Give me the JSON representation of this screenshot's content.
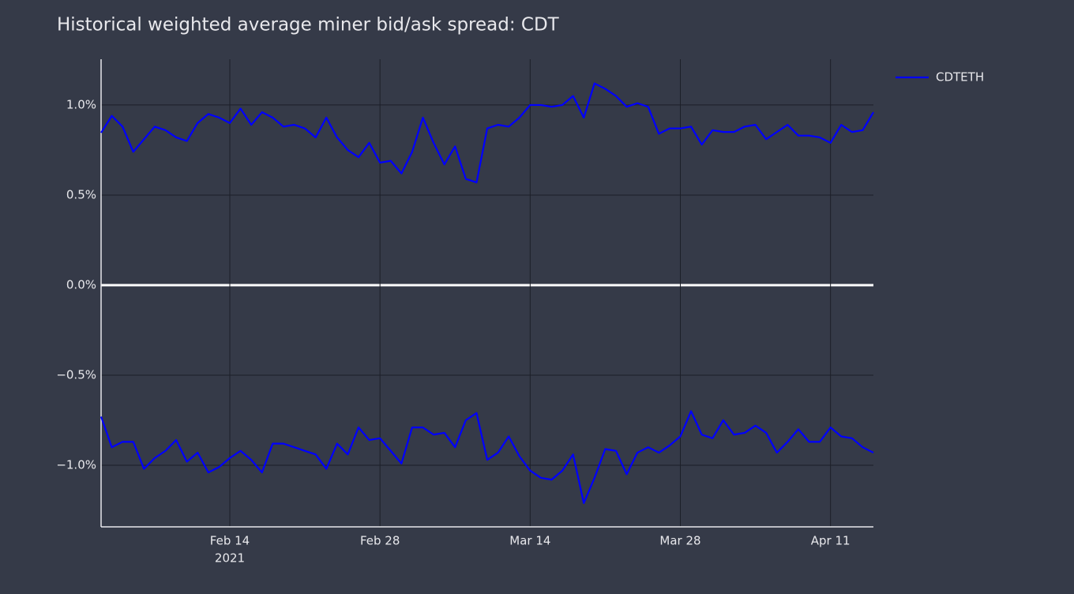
{
  "chart_data": {
    "type": "line",
    "title": "Historical weighted average miner bid/ask spread: CDT",
    "x": [
      "2021-02-02",
      "2021-02-03",
      "2021-02-04",
      "2021-02-05",
      "2021-02-06",
      "2021-02-07",
      "2021-02-08",
      "2021-02-09",
      "2021-02-10",
      "2021-02-11",
      "2021-02-12",
      "2021-02-13",
      "2021-02-14",
      "2021-02-15",
      "2021-02-16",
      "2021-02-17",
      "2021-02-18",
      "2021-02-19",
      "2021-02-20",
      "2021-02-21",
      "2021-02-22",
      "2021-02-23",
      "2021-02-24",
      "2021-02-25",
      "2021-02-26",
      "2021-02-27",
      "2021-02-28",
      "2021-03-01",
      "2021-03-02",
      "2021-03-03",
      "2021-03-04",
      "2021-03-05",
      "2021-03-06",
      "2021-03-07",
      "2021-03-08",
      "2021-03-09",
      "2021-03-10",
      "2021-03-11",
      "2021-03-12",
      "2021-03-13",
      "2021-03-14",
      "2021-03-15",
      "2021-03-16",
      "2021-03-17",
      "2021-03-18",
      "2021-03-19",
      "2021-03-20",
      "2021-03-21",
      "2021-03-22",
      "2021-03-23",
      "2021-03-24",
      "2021-03-25",
      "2021-03-26",
      "2021-03-27",
      "2021-03-28",
      "2021-03-29",
      "2021-03-30",
      "2021-03-31",
      "2021-04-01",
      "2021-04-02",
      "2021-04-03",
      "2021-04-04",
      "2021-04-05",
      "2021-04-06",
      "2021-04-07",
      "2021-04-08",
      "2021-04-09",
      "2021-04-10",
      "2021-04-11",
      "2021-04-12",
      "2021-04-13",
      "2021-04-14",
      "2021-04-15"
    ],
    "series": [
      {
        "name": "CDTETH",
        "color": "#0000ff",
        "values": [
          0.846,
          0.94,
          0.88,
          0.74,
          0.81,
          0.88,
          0.86,
          0.82,
          0.8,
          0.9,
          0.95,
          0.93,
          0.9,
          0.98,
          0.89,
          0.96,
          0.93,
          0.88,
          0.89,
          0.87,
          0.82,
          0.93,
          0.82,
          0.75,
          0.71,
          0.79,
          0.68,
          0.69,
          0.62,
          0.74,
          0.93,
          0.79,
          0.67,
          0.77,
          0.59,
          0.57,
          0.87,
          0.89,
          0.88,
          0.93,
          1.0,
          1.0,
          0.99,
          1.0,
          1.05,
          0.93,
          1.12,
          1.09,
          1.05,
          0.99,
          1.01,
          0.99,
          0.84,
          0.87,
          0.87,
          0.88,
          0.78,
          0.86,
          0.85,
          0.85,
          0.88,
          0.89,
          0.81,
          0.85,
          0.89,
          0.83,
          0.83,
          0.82,
          0.79,
          0.89,
          0.85,
          0.86,
          0.96
        ]
      },
      {
        "color": "#0000ff",
        "values": [
          -0.73,
          -0.9,
          -0.87,
          -0.87,
          -1.02,
          -0.96,
          -0.92,
          -0.86,
          -0.98,
          -0.93,
          -1.04,
          -1.01,
          -0.96,
          -0.92,
          -0.97,
          -1.04,
          -0.88,
          -0.88,
          -0.9,
          -0.92,
          -0.94,
          -1.02,
          -0.88,
          -0.94,
          -0.79,
          -0.86,
          -0.85,
          -0.92,
          -0.99,
          -0.79,
          -0.79,
          -0.83,
          -0.82,
          -0.9,
          -0.75,
          -0.71,
          -0.97,
          -0.93,
          -0.84,
          -0.95,
          -1.03,
          -1.07,
          -1.08,
          -1.03,
          -0.94,
          -1.21,
          -1.07,
          -0.91,
          -0.92,
          -1.05,
          -0.93,
          -0.9,
          -0.93,
          -0.89,
          -0.84,
          -0.7,
          -0.83,
          -0.85,
          -0.75,
          -0.83,
          -0.82,
          -0.78,
          -0.82,
          -0.93,
          -0.87,
          -0.8,
          -0.87,
          -0.87,
          -0.79,
          -0.84,
          -0.85,
          -0.9,
          -0.93
        ]
      }
    ],
    "xlim": [
      "2021-02-02",
      "2021-04-15"
    ],
    "xticks": [
      {
        "value": "2021-02-14",
        "label": "Feb 14"
      },
      {
        "value": "2021-02-28",
        "label": "Feb 28"
      },
      {
        "value": "2021-03-14",
        "label": "Mar 14"
      },
      {
        "value": "2021-03-28",
        "label": "Mar 28"
      },
      {
        "value": "2021-04-11",
        "label": "Apr 11"
      }
    ],
    "x_year_label": "2021",
    "ylim": [
      -1.342,
      1.254
    ],
    "yticks": [
      {
        "value": -1,
        "label": "−1.0%"
      },
      {
        "value": -0.5,
        "label": "−0.5%"
      },
      {
        "value": 0,
        "label": "0.0%"
      },
      {
        "value": 0.5,
        "label": "0.5%"
      },
      {
        "value": 1,
        "label": "1.0%"
      }
    ],
    "grid": true,
    "legend": "top-right"
  }
}
